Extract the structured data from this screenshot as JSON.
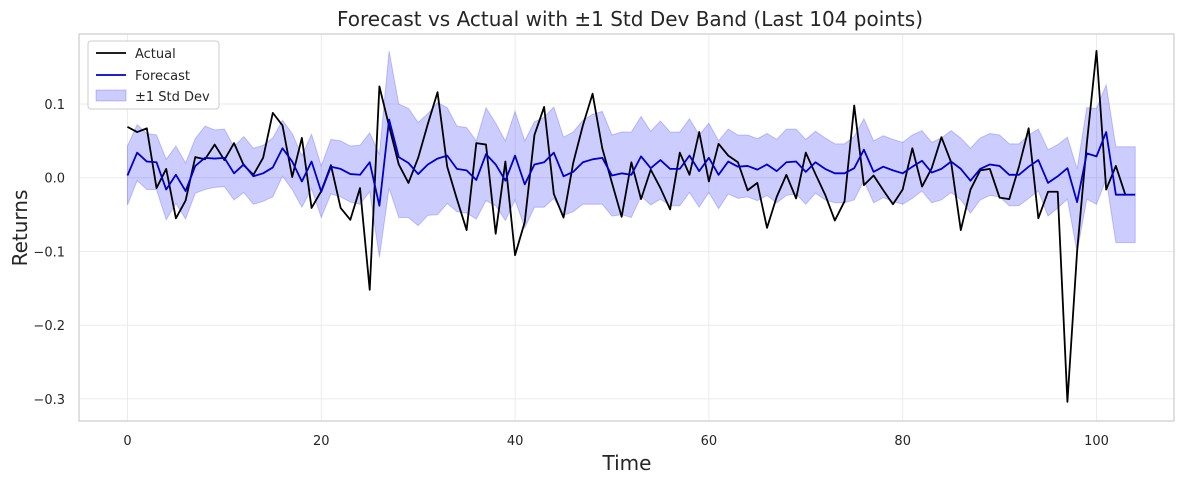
{
  "chart_data": {
    "type": "line",
    "title": "Forecast vs Actual with ±1 Std Dev Band (Last 104 points)",
    "xlabel": "Time",
    "ylabel": "Returns",
    "xlim": [
      -5,
      108
    ],
    "ylim": [
      -0.33,
      0.195
    ],
    "grid": true,
    "legend_position": "top-left",
    "x_ticks": [
      0,
      20,
      40,
      60,
      80,
      100
    ],
    "x_tick_labels": [
      "0",
      "20",
      "40",
      "60",
      "80",
      "100"
    ],
    "y_ticks": [
      -0.3,
      -0.2,
      -0.1,
      0.0,
      0.1
    ],
    "y_tick_labels": [
      "−0.3",
      "−0.2",
      "−0.1",
      "0.0",
      "0.1"
    ],
    "series": [
      {
        "name": "Actual",
        "color": "#000000",
        "values": [
          0.069,
          0.062,
          0.067,
          -0.014,
          0.012,
          -0.055,
          -0.031,
          0.028,
          0.025,
          0.045,
          0.024,
          0.047,
          0.017,
          0.004,
          0.027,
          0.088,
          0.071,
          0.001,
          0.054,
          -0.041,
          -0.018,
          0.017,
          -0.041,
          -0.057,
          -0.014,
          -0.152,
          0.124,
          0.07,
          0.018,
          -0.007,
          0.027,
          0.073,
          0.116,
          0.015,
          -0.029,
          -0.071,
          0.047,
          0.045,
          -0.076,
          0.022,
          -0.105,
          -0.06,
          0.058,
          0.096,
          -0.022,
          -0.054,
          0.02,
          0.071,
          0.114,
          0.04,
          -0.007,
          -0.053,
          0.021,
          -0.029,
          0.011,
          -0.014,
          -0.043,
          0.034,
          0.004,
          0.062,
          -0.005,
          0.046,
          0.03,
          0.021,
          -0.017,
          -0.007,
          -0.068,
          -0.026,
          0.004,
          -0.028,
          0.034,
          0.005,
          -0.023,
          -0.058,
          -0.032,
          0.098,
          -0.01,
          0.003,
          -0.017,
          -0.036,
          -0.016,
          0.04,
          -0.012,
          0.013,
          0.055,
          0.021,
          -0.071,
          -0.016,
          0.01,
          0.012,
          -0.027,
          -0.029,
          0.015,
          0.067,
          -0.055,
          -0.019,
          -0.019,
          -0.304,
          -0.1,
          0.046,
          0.172,
          -0.016,
          0.016,
          -0.024
        ]
      },
      {
        "name": "Forecast",
        "color": "#0000cc",
        "values": [
          0.003,
          0.034,
          0.022,
          0.021,
          -0.016,
          0.004,
          -0.018,
          0.016,
          0.027,
          0.026,
          0.027,
          0.006,
          0.018,
          0.002,
          0.006,
          0.014,
          0.04,
          0.022,
          -0.005,
          0.022,
          -0.019,
          0.015,
          0.012,
          0.005,
          0.004,
          0.021,
          -0.038,
          0.079,
          0.028,
          0.02,
          0.005,
          0.018,
          0.026,
          0.03,
          0.012,
          0.01,
          -0.003,
          0.032,
          0.018,
          -0.004,
          0.03,
          -0.009,
          0.018,
          0.021,
          0.034,
          0.002,
          0.008,
          0.021,
          0.025,
          0.027,
          0.003,
          0.006,
          0.004,
          0.029,
          0.013,
          0.024,
          0.012,
          0.012,
          0.03,
          0.009,
          0.027,
          0.004,
          0.022,
          0.015,
          0.016,
          0.011,
          0.018,
          0.009,
          0.021,
          0.022,
          0.008,
          0.021,
          0.012,
          0.006,
          0.006,
          0.013,
          0.038,
          0.008,
          0.015,
          0.01,
          0.006,
          0.015,
          0.023,
          0.007,
          0.012,
          0.022,
          0.012,
          -0.004,
          0.012,
          0.018,
          0.016,
          0.004,
          0.004,
          0.015,
          0.024,
          -0.007,
          0.002,
          0.013,
          -0.033,
          0.033,
          0.029,
          0.062,
          -0.023,
          -0.023,
          -0.023
        ]
      }
    ],
    "band": {
      "name": "±1 Std Dev",
      "color": "#0000ff",
      "opacity": 0.2,
      "upper": [
        0.043,
        0.072,
        0.06,
        0.058,
        0.025,
        0.043,
        0.02,
        0.053,
        0.07,
        0.065,
        0.066,
        0.042,
        0.056,
        0.04,
        0.044,
        0.054,
        0.078,
        0.06,
        0.03,
        0.059,
        0.016,
        0.052,
        0.05,
        0.043,
        0.044,
        0.061,
        0.032,
        0.172,
        0.1,
        0.094,
        0.075,
        0.087,
        0.102,
        0.095,
        0.07,
        0.068,
        0.05,
        0.095,
        0.074,
        0.05,
        0.09,
        0.05,
        0.076,
        0.082,
        0.096,
        0.055,
        0.062,
        0.078,
        0.086,
        0.09,
        0.058,
        0.062,
        0.062,
        0.083,
        0.063,
        0.077,
        0.062,
        0.062,
        0.08,
        0.058,
        0.074,
        0.05,
        0.066,
        0.058,
        0.058,
        0.053,
        0.06,
        0.052,
        0.066,
        0.066,
        0.052,
        0.063,
        0.054,
        0.046,
        0.046,
        0.056,
        0.08,
        0.05,
        0.057,
        0.052,
        0.048,
        0.058,
        0.064,
        0.048,
        0.054,
        0.064,
        0.054,
        0.04,
        0.054,
        0.06,
        0.058,
        0.046,
        0.046,
        0.058,
        0.066,
        0.038,
        0.045,
        0.055,
        0.012,
        0.095,
        0.094,
        0.126,
        0.042,
        0.042,
        0.042
      ],
      "lower": [
        -0.037,
        -0.004,
        -0.016,
        -0.016,
        -0.057,
        -0.035,
        -0.056,
        -0.021,
        -0.016,
        -0.013,
        -0.012,
        -0.03,
        -0.02,
        -0.036,
        -0.032,
        -0.026,
        0.002,
        -0.016,
        -0.04,
        -0.015,
        -0.054,
        -0.022,
        -0.026,
        -0.033,
        -0.036,
        -0.019,
        -0.108,
        -0.014,
        -0.054,
        -0.054,
        -0.065,
        -0.051,
        -0.05,
        -0.035,
        -0.046,
        -0.048,
        -0.056,
        -0.031,
        -0.038,
        -0.058,
        -0.03,
        -0.068,
        -0.04,
        -0.04,
        -0.028,
        -0.051,
        -0.046,
        -0.036,
        -0.036,
        -0.036,
        -0.052,
        -0.05,
        -0.054,
        -0.025,
        -0.037,
        -0.029,
        -0.038,
        -0.038,
        -0.02,
        -0.04,
        -0.02,
        -0.042,
        -0.022,
        -0.028,
        -0.026,
        -0.031,
        -0.024,
        -0.034,
        -0.024,
        -0.022,
        -0.036,
        -0.021,
        -0.03,
        -0.034,
        -0.034,
        -0.03,
        -0.004,
        -0.034,
        -0.027,
        -0.032,
        -0.036,
        -0.028,
        -0.018,
        -0.034,
        -0.03,
        -0.02,
        -0.03,
        -0.048,
        -0.03,
        -0.024,
        -0.026,
        -0.038,
        -0.038,
        -0.028,
        -0.018,
        -0.052,
        -0.041,
        -0.029,
        -0.101,
        -0.029,
        -0.036,
        -0.002,
        -0.088,
        -0.088,
        -0.088
      ]
    }
  }
}
